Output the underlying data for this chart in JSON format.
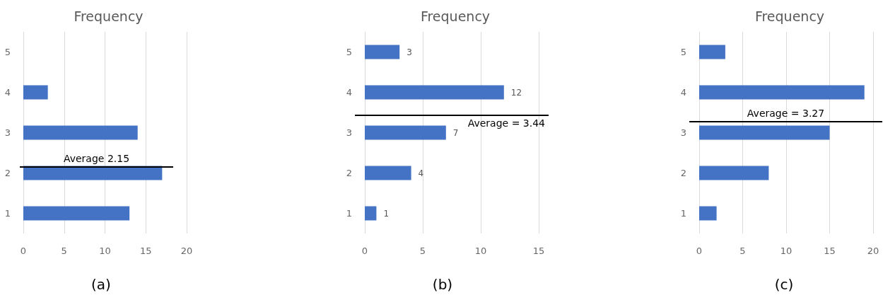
{
  "chart_data": [
    {
      "type": "bar",
      "orientation": "horizontal",
      "title": "Frequency",
      "x": [
        4,
        3,
        2,
        1
      ],
      "values": [
        3,
        14,
        17,
        13
      ],
      "color": "#4472c4",
      "xlim": [
        0,
        20
      ],
      "xticks": [
        0,
        5,
        10,
        15,
        20
      ],
      "ylim": [
        0.5,
        5.5
      ],
      "yticks": [
        1,
        2,
        3,
        4,
        5
      ],
      "grid": "x",
      "ref_lines": [
        {
          "axis": "y",
          "value": 2.15,
          "label": "Average 2.15",
          "color": "#000000"
        }
      ],
      "annotations": [
        "(a)"
      ]
    },
    {
      "type": "bar",
      "orientation": "horizontal",
      "title": "Frequency",
      "x": [
        5,
        4,
        3,
        2,
        1
      ],
      "values": [
        3,
        12,
        7,
        4,
        1
      ],
      "color": "#4472c4",
      "xlim": [
        0,
        15
      ],
      "xticks": [
        0,
        5,
        10,
        15
      ],
      "ylim": [
        0.5,
        5.5
      ],
      "yticks": [
        1,
        2,
        3,
        4,
        5
      ],
      "grid": "x",
      "data_labels": true,
      "ref_lines": [
        {
          "axis": "y",
          "value": 3.44,
          "label": "Average = 3.44",
          "color": "#000000"
        }
      ],
      "annotations": [
        "(b)"
      ]
    },
    {
      "type": "bar",
      "orientation": "horizontal",
      "title": "Frequency",
      "x": [
        5,
        4,
        3,
        2,
        1
      ],
      "values": [
        3,
        19,
        15,
        8,
        2
      ],
      "color": "#4472c4",
      "xlim": [
        0,
        20
      ],
      "xticks": [
        0,
        5,
        10,
        15,
        20
      ],
      "ylim": [
        0.5,
        5.5
      ],
      "yticks": [
        1,
        2,
        3,
        4,
        5
      ],
      "grid": "x",
      "ref_lines": [
        {
          "axis": "y",
          "value": 3.27,
          "label": "Average = 3.27",
          "color": "#000000"
        }
      ],
      "annotations": [
        "(c)"
      ]
    }
  ]
}
